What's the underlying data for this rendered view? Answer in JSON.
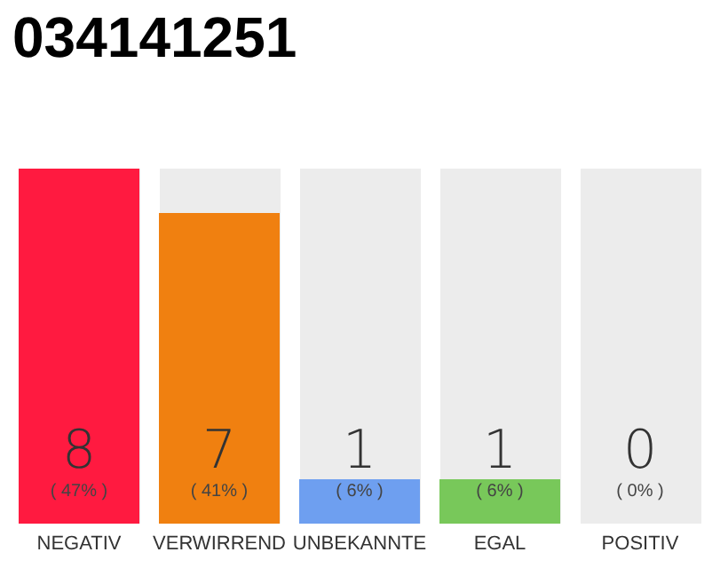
{
  "chart_data": {
    "type": "bar",
    "title": "034141251",
    "categories": [
      "NEGATIV",
      "VERWIRREND",
      "UNBEKANNTE",
      "EGAL",
      "POSITIV"
    ],
    "values": [
      8,
      7,
      1,
      1,
      0
    ],
    "colors": [
      "#ff1a40",
      "#f08010",
      "#6e9ff0",
      "#78c85a",
      "#e0e0e0"
    ],
    "data_labels": true,
    "ylim": [
      0,
      8
    ],
    "tick_labels": "x",
    "grid": false,
    "annotations": [
      "( 47% )",
      "( 41% )",
      "( 6% )",
      "( 6% )",
      "( 0% )"
    ]
  }
}
